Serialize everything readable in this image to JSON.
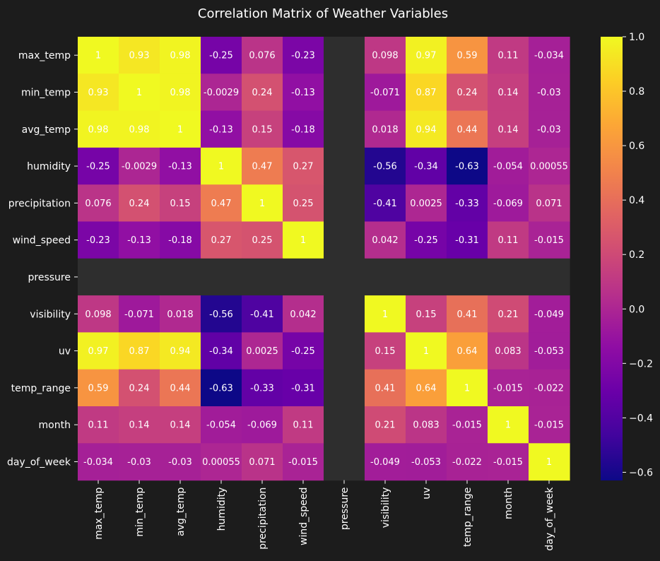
{
  "chart_data": {
    "type": "heatmap",
    "title": "Correlation Matrix of Weather Variables",
    "rows": [
      "max_temp",
      "min_temp",
      "avg_temp",
      "humidity",
      "precipitation",
      "wind_speed",
      "pressure",
      "visibility",
      "uv",
      "temp_range",
      "month",
      "day_of_week"
    ],
    "columns": [
      "max_temp",
      "min_temp",
      "avg_temp",
      "humidity",
      "precipitation",
      "wind_speed",
      "pressure",
      "visibility",
      "uv",
      "temp_range",
      "month",
      "day_of_week"
    ],
    "values": [
      [
        1,
        0.93,
        0.98,
        -0.25,
        0.076,
        -0.23,
        null,
        0.098,
        0.97,
        0.59,
        0.11,
        -0.034
      ],
      [
        0.93,
        1,
        0.98,
        -0.0029,
        0.24,
        -0.13,
        null,
        -0.071,
        0.87,
        0.24,
        0.14,
        -0.03
      ],
      [
        0.98,
        0.98,
        1,
        -0.13,
        0.15,
        -0.18,
        null,
        0.018,
        0.94,
        0.44,
        0.14,
        -0.03
      ],
      [
        -0.25,
        -0.0029,
        -0.13,
        1,
        0.47,
        0.27,
        null,
        -0.56,
        -0.34,
        -0.63,
        -0.054,
        0.00055
      ],
      [
        0.076,
        0.24,
        0.15,
        0.47,
        1,
        0.25,
        null,
        -0.41,
        0.0025,
        -0.33,
        -0.069,
        0.071
      ],
      [
        -0.23,
        -0.13,
        -0.18,
        0.27,
        0.25,
        1,
        null,
        0.042,
        -0.25,
        -0.31,
        0.11,
        -0.015
      ],
      [
        null,
        null,
        null,
        null,
        null,
        null,
        null,
        null,
        null,
        null,
        null,
        null
      ],
      [
        0.098,
        -0.071,
        0.018,
        -0.56,
        -0.41,
        0.042,
        null,
        1,
        0.15,
        0.41,
        0.21,
        -0.049
      ],
      [
        0.97,
        0.87,
        0.94,
        -0.34,
        0.0025,
        -0.25,
        null,
        0.15,
        1,
        0.64,
        0.083,
        -0.053
      ],
      [
        0.59,
        0.24,
        0.44,
        -0.63,
        -0.33,
        -0.31,
        null,
        0.41,
        0.64,
        1,
        -0.015,
        -0.022
      ],
      [
        0.11,
        0.14,
        0.14,
        -0.054,
        -0.069,
        0.11,
        null,
        0.21,
        0.083,
        -0.015,
        1,
        -0.015
      ],
      [
        -0.034,
        -0.03,
        -0.03,
        0.00055,
        0.071,
        -0.015,
        null,
        -0.049,
        -0.053,
        -0.022,
        -0.015,
        1
      ]
    ],
    "colorscale": "plasma",
    "vmin": -0.63,
    "vmax": 1.0,
    "colorbar_ticks": [
      1.0,
      0.8,
      0.6,
      0.4,
      0.2,
      0.0,
      -0.2,
      -0.4,
      -0.6
    ],
    "colorbar_tick_labels": [
      "1.0",
      "0.8",
      "0.6",
      "0.4",
      "0.2",
      "0.0",
      "−0.2",
      "−0.4",
      "−0.6"
    ],
    "missing_color": "#2e2e2e",
    "background": "#1c1c1c",
    "text_color": "#ffffff"
  }
}
